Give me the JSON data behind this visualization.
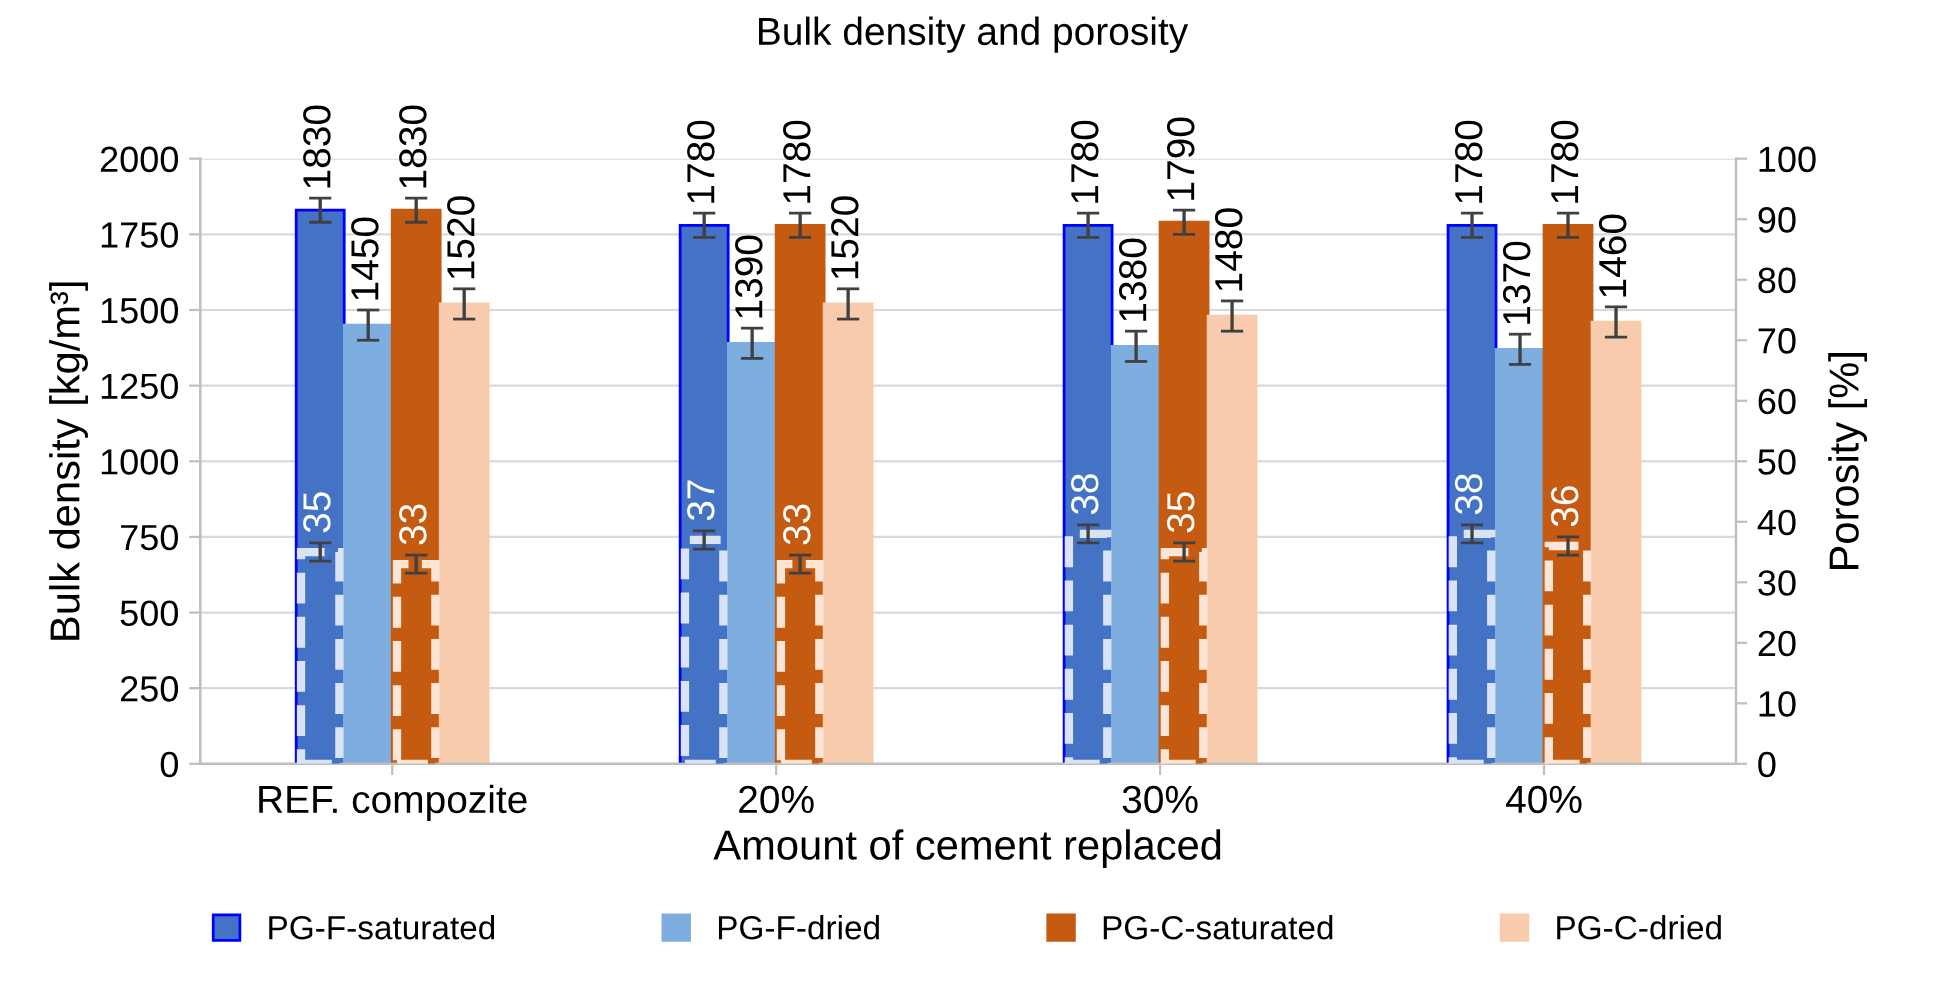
{
  "chart_data": {
    "type": "bar",
    "title": "Bulk density and porosity",
    "xlabel": "Amount of cement replaced",
    "ylabel": "Bulk density [kg/m³]",
    "y2label": "Porosity [%]",
    "categories": [
      "REF. compozite",
      "20%",
      "30%",
      "40%"
    ],
    "series": [
      {
        "name": "PG-F-saturated",
        "color": "#4472c4",
        "values": [
          1830,
          1780,
          1780,
          1780
        ],
        "errors": [
          40,
          40,
          40,
          40
        ]
      },
      {
        "name": "PG-F-dried",
        "color": "#7eaee0",
        "values": [
          1450,
          1390,
          1380,
          1370
        ],
        "errors": [
          50,
          50,
          50,
          50
        ]
      },
      {
        "name": "PG-C-saturated",
        "color": "#c55a11",
        "values": [
          1830,
          1780,
          1790,
          1780
        ],
        "errors": [
          40,
          40,
          40,
          40
        ]
      },
      {
        "name": "PG-C-dried",
        "color": "#f8cbad",
        "values": [
          1520,
          1520,
          1480,
          1460
        ],
        "errors": [
          50,
          50,
          50,
          50
        ]
      },
      {
        "axis": "y2",
        "color": "#4472c4",
        "values": [
          35,
          37,
          38,
          38
        ],
        "errors": [
          1.5,
          1.5,
          1.5,
          1.5
        ]
      },
      {
        "axis": "y2",
        "color": "#c55a11",
        "values": [
          33,
          33,
          35,
          36
        ],
        "errors": [
          1.5,
          1.5,
          1.5,
          1.5
        ]
      }
    ],
    "ylim": [
      0,
      2000
    ],
    "yticks": [
      0,
      250,
      500,
      750,
      1000,
      1250,
      1500,
      1750,
      2000
    ],
    "y2lim": [
      0,
      100
    ],
    "y2ticks": [
      0,
      10,
      20,
      30,
      40,
      50,
      60,
      70,
      80,
      90,
      100
    ],
    "data_labels": true,
    "grid": "y",
    "legend": "bottom"
  }
}
